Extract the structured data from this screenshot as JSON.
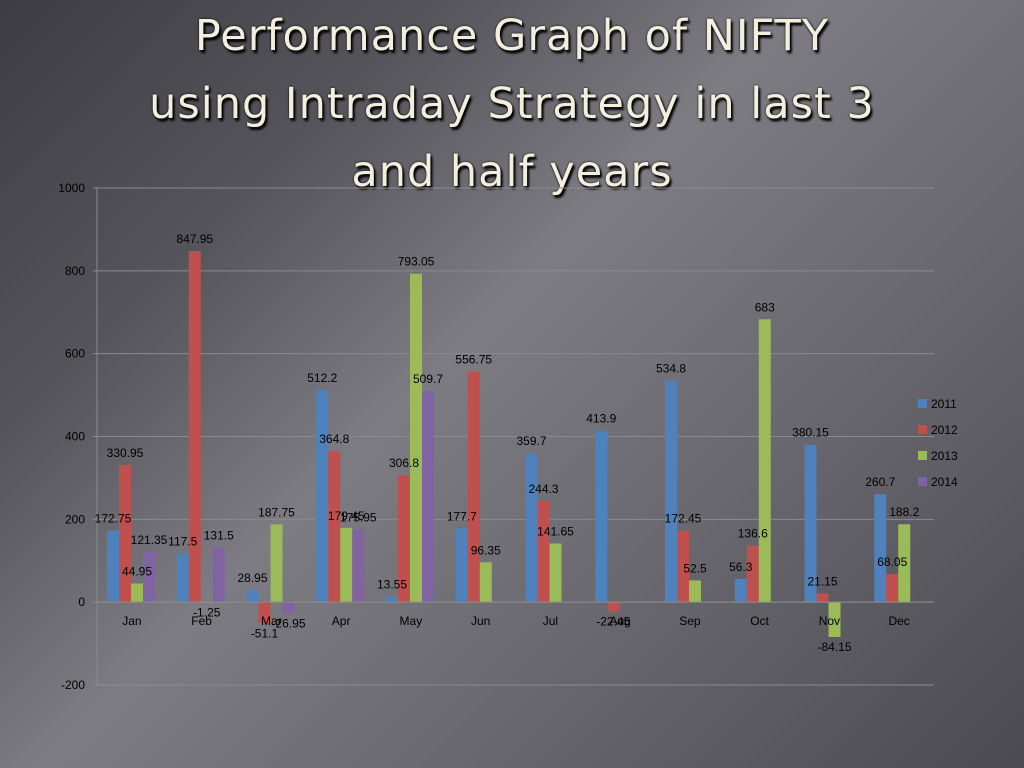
{
  "slide": {
    "title_lines": [
      "Performance Graph of NIFTY",
      "using Intraday Strategy in last 3",
      "and half years"
    ]
  },
  "chart_data": {
    "type": "bar",
    "title": "Performance Graph of NIFTY using Intraday Strategy in last 3 and half years",
    "xlabel": "",
    "ylabel": "",
    "ylim": [
      -200,
      1000
    ],
    "yticks": [
      -200,
      0,
      200,
      400,
      600,
      800,
      1000
    ],
    "grid": true,
    "legend_position": "right",
    "categories": [
      "Jan",
      "Feb",
      "Mar",
      "Apr",
      "May",
      "Jun",
      "Jul",
      "Aug",
      "Sep",
      "Oct",
      "Nov",
      "Dec"
    ],
    "series": [
      {
        "name": "2011",
        "color": "#4f81bd",
        "values": [
          172.75,
          117.5,
          28.95,
          512.2,
          13.55,
          177.7,
          359.7,
          413.9,
          534.8,
          56.3,
          380.15,
          260.7
        ]
      },
      {
        "name": "2012",
        "color": "#c0504d",
        "values": [
          330.95,
          847.95,
          -51.1,
          364.8,
          306.8,
          556.75,
          244.3,
          -22.45,
          172.45,
          136.6,
          21.15,
          68.05
        ]
      },
      {
        "name": "2013",
        "color": "#9bbb59",
        "values": [
          44.95,
          -1.25,
          187.75,
          179.45,
          793.05,
          96.35,
          141.65,
          null,
          52.5,
          683,
          -84.15,
          188.2
        ]
      },
      {
        "name": "2014",
        "color": "#8064a2",
        "values": [
          121.35,
          131.5,
          -26.95,
          175.95,
          509.7,
          null,
          null,
          null,
          null,
          null,
          null,
          null
        ]
      }
    ]
  }
}
